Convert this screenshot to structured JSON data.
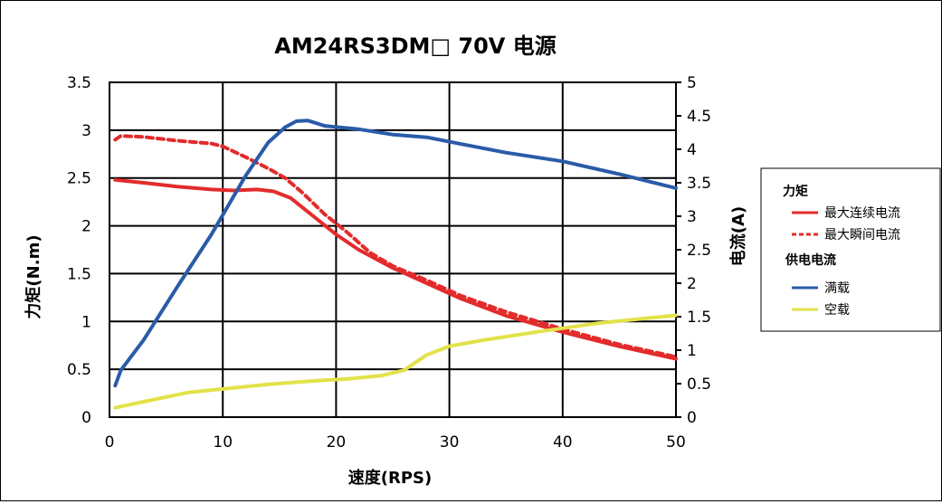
{
  "chart_data": {
    "type": "line",
    "title": "AM24RS3DM□ 70V 电源",
    "xlabel": "速度(RPS)",
    "ylabel_left": "力矩(N.m)",
    "ylabel_right": "电流(A)",
    "xlim": [
      0,
      50
    ],
    "ylim_left": [
      0,
      3.5
    ],
    "ylim_right": [
      0,
      5
    ],
    "x_ticks": [
      "0",
      "10",
      "20",
      "30",
      "40",
      "50"
    ],
    "y_ticks_left": [
      "0",
      "0.5",
      "1",
      "1.5",
      "2",
      "2.5",
      "3",
      "3.5"
    ],
    "y_ticks_right": [
      "0",
      "0.5",
      "1",
      "1.5",
      "2",
      "2.5",
      "3",
      "3.5",
      "4",
      "4.5",
      "5"
    ],
    "grid": true,
    "legend_position": "right",
    "legend": {
      "torque_heading": "力矩",
      "current_heading": "供电电流"
    },
    "series": [
      {
        "name": "最大连续电流",
        "axis": "left",
        "color": "#e32b2b",
        "style": "solid",
        "points": [
          [
            0.5,
            2.48
          ],
          [
            3,
            2.45
          ],
          [
            6,
            2.41
          ],
          [
            9,
            2.38
          ],
          [
            11,
            2.37
          ],
          [
            13,
            2.38
          ],
          [
            14.5,
            2.36
          ],
          [
            16,
            2.29
          ],
          [
            18,
            2.1
          ],
          [
            20,
            1.91
          ],
          [
            22,
            1.75
          ],
          [
            25,
            1.56
          ],
          [
            28,
            1.4
          ],
          [
            31,
            1.24
          ],
          [
            35,
            1.06
          ],
          [
            40,
            0.89
          ],
          [
            45,
            0.74
          ],
          [
            50,
            0.61
          ]
        ]
      },
      {
        "name": "最大瞬间电流",
        "axis": "left",
        "color": "#e32b2b",
        "style": "dashed",
        "points": [
          [
            0.5,
            2.9
          ],
          [
            1,
            2.94
          ],
          [
            3,
            2.93
          ],
          [
            6,
            2.89
          ],
          [
            9,
            2.86
          ],
          [
            10,
            2.83
          ],
          [
            12,
            2.72
          ],
          [
            14,
            2.6
          ],
          [
            15.5,
            2.5
          ],
          [
            17,
            2.35
          ],
          [
            19,
            2.12
          ],
          [
            21,
            1.93
          ],
          [
            23,
            1.72
          ],
          [
            25,
            1.58
          ],
          [
            28,
            1.43
          ],
          [
            31,
            1.27
          ],
          [
            35,
            1.1
          ],
          [
            40,
            0.92
          ],
          [
            45,
            0.76
          ],
          [
            50,
            0.63
          ]
        ]
      },
      {
        "name": "满载",
        "axis": "right",
        "color": "#2a5ba8",
        "style": "solid",
        "points": [
          [
            0.5,
            0.47
          ],
          [
            1,
            0.7
          ],
          [
            3,
            1.15
          ],
          [
            6,
            1.95
          ],
          [
            9,
            2.73
          ],
          [
            12,
            3.6
          ],
          [
            14,
            4.1
          ],
          [
            15.5,
            4.33
          ],
          [
            16.5,
            4.42
          ],
          [
            17.5,
            4.43
          ],
          [
            19,
            4.35
          ],
          [
            22,
            4.3
          ],
          [
            25,
            4.22
          ],
          [
            28,
            4.18
          ],
          [
            31,
            4.08
          ],
          [
            35,
            3.95
          ],
          [
            40,
            3.82
          ],
          [
            45,
            3.63
          ],
          [
            50,
            3.42
          ]
        ]
      },
      {
        "name": "空载",
        "axis": "right",
        "color": "#e2e24a",
        "style": "solid",
        "points": [
          [
            0.5,
            0.14
          ],
          [
            3,
            0.23
          ],
          [
            7,
            0.37
          ],
          [
            10,
            0.42
          ],
          [
            14,
            0.49
          ],
          [
            18,
            0.54
          ],
          [
            21,
            0.57
          ],
          [
            24,
            0.62
          ],
          [
            26,
            0.7
          ],
          [
            28,
            0.93
          ],
          [
            30,
            1.06
          ],
          [
            33,
            1.15
          ],
          [
            38,
            1.28
          ],
          [
            43,
            1.4
          ],
          [
            47,
            1.47
          ],
          [
            50,
            1.52
          ]
        ]
      }
    ]
  }
}
